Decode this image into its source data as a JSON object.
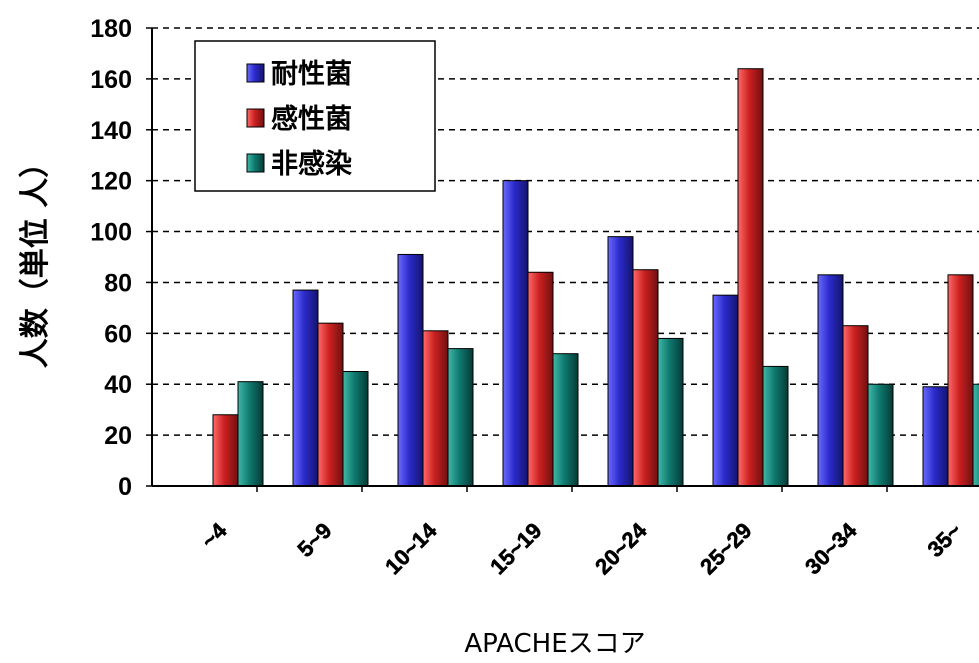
{
  "chart_data": {
    "type": "bar",
    "title": "",
    "xlabel": "APACHEスコア",
    "ylabel": "人数（単位 人）",
    "ylim": [
      0,
      180
    ],
    "ytick_step": 20,
    "grid": true,
    "legend_position": "top-left",
    "categories": [
      "~4",
      "5~9",
      "10~14",
      "15~19",
      "20~24",
      "25~29",
      "30~34",
      "35~"
    ],
    "series": [
      {
        "name": "耐性菌",
        "color": "#2b2bcc",
        "values": [
          0,
          77,
          91,
          120,
          98,
          75,
          83,
          39
        ]
      },
      {
        "name": "感性菌",
        "color": "#cc2020",
        "values": [
          28,
          64,
          61,
          84,
          85,
          164,
          63,
          83
        ]
      },
      {
        "name": "非感染",
        "color": "#0f7a70",
        "values": [
          41,
          45,
          54,
          52,
          58,
          47,
          40,
          40
        ]
      }
    ]
  }
}
